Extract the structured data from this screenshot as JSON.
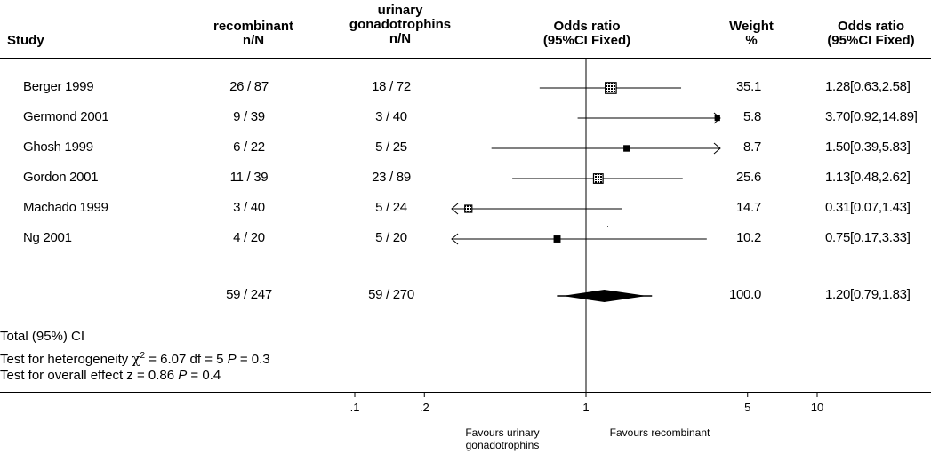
{
  "chart_data": {
    "type": "forest",
    "columns": {
      "study": "Study",
      "rec": "recombinant n/N",
      "uri": "urinary gonadotrophins n/N",
      "or": "Odds ratio (95%CI Fixed)",
      "w": "Weight %",
      "ortext": "Odds ratio (95%CI Fixed)"
    },
    "studies": [
      {
        "name": "Berger 1999",
        "rec": "26 / 87",
        "uri": "18 / 72",
        "or": 1.28,
        "lo": 0.63,
        "hi": 2.58,
        "weight": "35.1",
        "ci_text": "1.28[0.63,2.58]"
      },
      {
        "name": "Germond 2001",
        "rec": "9 / 39",
        "uri": "3 / 40",
        "or": 3.7,
        "lo": 0.92,
        "hi": 14.89,
        "weight": "5.8",
        "ci_text": "3.70[0.92,14.89]"
      },
      {
        "name": "Ghosh 1999",
        "rec": "6 / 22",
        "uri": "5 / 25",
        "or": 1.5,
        "lo": 0.39,
        "hi": 5.83,
        "weight": "8.7",
        "ci_text": "1.50[0.39,5.83]"
      },
      {
        "name": "Gordon 2001",
        "rec": "11 / 39",
        "uri": "23 / 89",
        "or": 1.13,
        "lo": 0.48,
        "hi": 2.62,
        "weight": "25.6",
        "ci_text": "1.13[0.48,2.62]"
      },
      {
        "name": "Machado 1999",
        "rec": "3 / 40",
        "uri": "5 / 24",
        "or": 0.31,
        "lo": 0.07,
        "hi": 1.43,
        "weight": "14.7",
        "ci_text": "0.31[0.07,1.43]"
      },
      {
        "name": "Ng 2001",
        "rec": "4 / 20",
        "uri": "5 / 20",
        "or": 0.75,
        "lo": 0.17,
        "hi": 3.33,
        "weight": "10.2",
        "ci_text": "0.75[0.17,3.33]"
      }
    ],
    "total": {
      "label": "Total (95%) CI",
      "rec": "59 / 247",
      "uri": "59 / 270",
      "or": 1.2,
      "lo": 0.79,
      "hi": 1.83,
      "weight": "100.0",
      "ci_text": "1.20[0.79,1.83]"
    },
    "heterogeneity": {
      "prefix": "Test for heterogeneity ",
      "chi": "χ",
      "sup": "2",
      "stat": " = 6.07  df = 5 ",
      "p": "P",
      "pval": " = 0.3"
    },
    "overall": {
      "prefix": "Test for overall effect z = 0.86 ",
      "p": "P",
      "pval": " = 0.4"
    },
    "axis": {
      "scale": "log",
      "xlim": [
        0.08,
        10
      ],
      "ticks": [
        {
          "v": 0.1,
          "label": ".1"
        },
        {
          "v": 0.2,
          "label": ".2"
        },
        {
          "v": 1,
          "label": "1"
        },
        {
          "v": 5,
          "label": "5"
        },
        {
          "v": 10,
          "label": "10"
        }
      ]
    },
    "favours_left": [
      "Favours urinary",
      "gonadotrophins"
    ],
    "favours_right": "Favours recombinant"
  }
}
